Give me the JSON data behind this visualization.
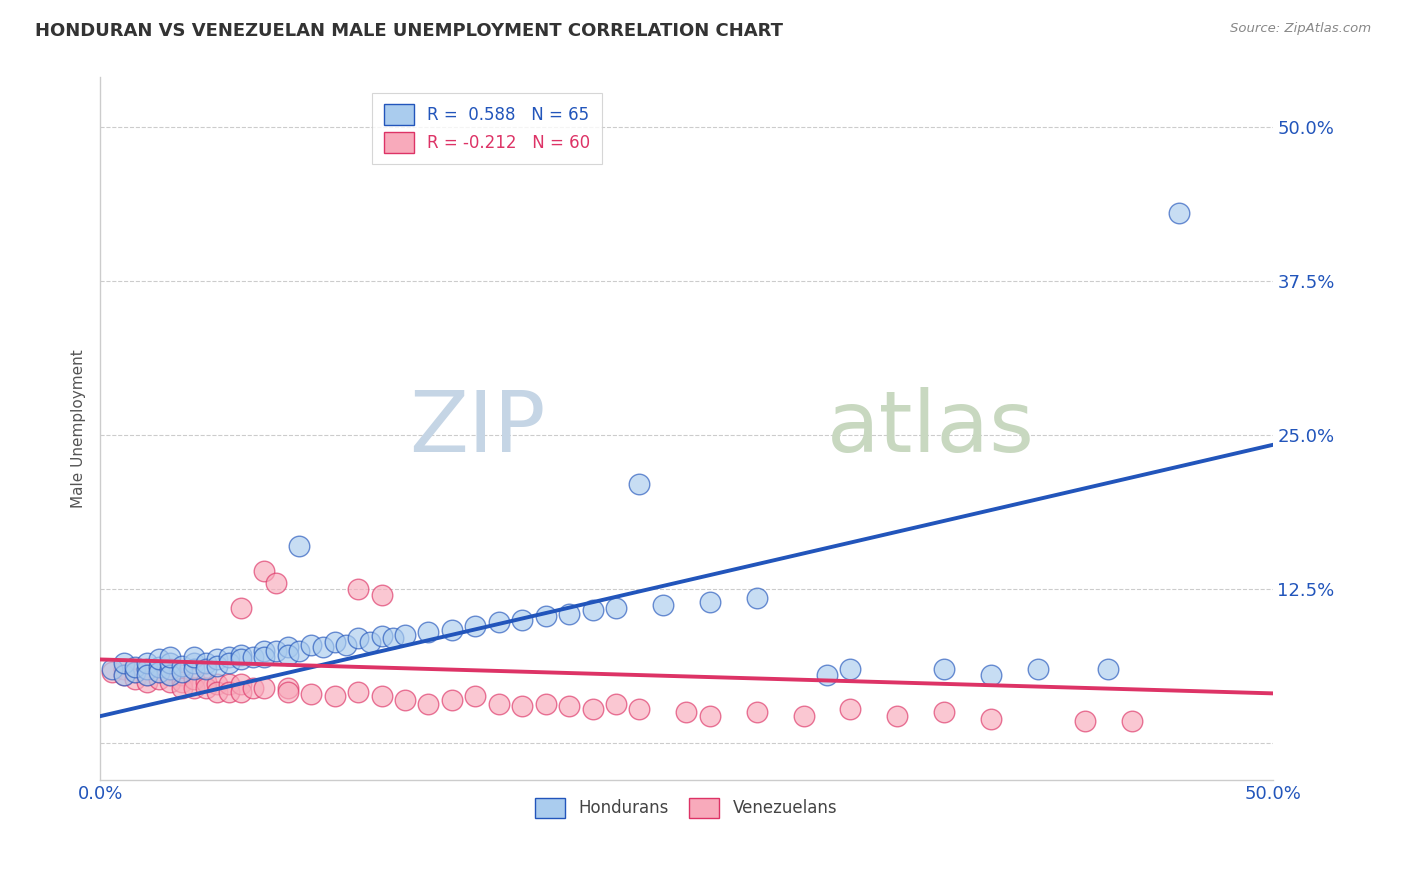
{
  "title": "HONDURAN VS VENEZUELAN MALE UNEMPLOYMENT CORRELATION CHART",
  "source": "Source: ZipAtlas.com",
  "ylabel": "Male Unemployment",
  "xlim": [
    0.0,
    0.5
  ],
  "ylim": [
    -0.03,
    0.54
  ],
  "xticks": [
    0.0,
    0.1,
    0.2,
    0.3,
    0.4,
    0.5
  ],
  "yticks": [
    0.0,
    0.125,
    0.25,
    0.375,
    0.5
  ],
  "ytick_labels": [
    "",
    "12.5%",
    "25.0%",
    "37.5%",
    "50.0%"
  ],
  "xtick_labels": [
    "0.0%",
    "",
    "",
    "",
    "",
    "50.0%"
  ],
  "background_color": "#ffffff",
  "grid_color": "#cccccc",
  "honduran_color": "#aaccee",
  "venezuelan_color": "#f8aabb",
  "honduran_line_color": "#2255bb",
  "venezuelan_line_color": "#dd3366",
  "R_honduran": 0.588,
  "N_honduran": 65,
  "R_venezuelan": -0.212,
  "N_venezuelan": 60,
  "honduran_scatter": [
    [
      0.005,
      0.06
    ],
    [
      0.01,
      0.055
    ],
    [
      0.01,
      0.065
    ],
    [
      0.015,
      0.058
    ],
    [
      0.015,
      0.062
    ],
    [
      0.02,
      0.06
    ],
    [
      0.02,
      0.065
    ],
    [
      0.02,
      0.055
    ],
    [
      0.025,
      0.062
    ],
    [
      0.025,
      0.058
    ],
    [
      0.025,
      0.068
    ],
    [
      0.03,
      0.06
    ],
    [
      0.03,
      0.065
    ],
    [
      0.03,
      0.055
    ],
    [
      0.03,
      0.07
    ],
    [
      0.035,
      0.063
    ],
    [
      0.035,
      0.058
    ],
    [
      0.04,
      0.065
    ],
    [
      0.04,
      0.06
    ],
    [
      0.04,
      0.07
    ],
    [
      0.045,
      0.065
    ],
    [
      0.045,
      0.06
    ],
    [
      0.05,
      0.068
    ],
    [
      0.05,
      0.063
    ],
    [
      0.055,
      0.07
    ],
    [
      0.055,
      0.065
    ],
    [
      0.06,
      0.072
    ],
    [
      0.06,
      0.068
    ],
    [
      0.065,
      0.07
    ],
    [
      0.07,
      0.075
    ],
    [
      0.07,
      0.07
    ],
    [
      0.075,
      0.075
    ],
    [
      0.08,
      0.078
    ],
    [
      0.08,
      0.072
    ],
    [
      0.085,
      0.075
    ],
    [
      0.09,
      0.08
    ],
    [
      0.095,
      0.078
    ],
    [
      0.1,
      0.082
    ],
    [
      0.105,
      0.08
    ],
    [
      0.11,
      0.085
    ],
    [
      0.115,
      0.082
    ],
    [
      0.12,
      0.087
    ],
    [
      0.125,
      0.085
    ],
    [
      0.13,
      0.088
    ],
    [
      0.14,
      0.09
    ],
    [
      0.15,
      0.092
    ],
    [
      0.16,
      0.095
    ],
    [
      0.17,
      0.098
    ],
    [
      0.18,
      0.1
    ],
    [
      0.19,
      0.103
    ],
    [
      0.2,
      0.105
    ],
    [
      0.21,
      0.108
    ],
    [
      0.22,
      0.11
    ],
    [
      0.24,
      0.112
    ],
    [
      0.26,
      0.115
    ],
    [
      0.28,
      0.118
    ],
    [
      0.32,
      0.06
    ],
    [
      0.36,
      0.06
    ],
    [
      0.4,
      0.06
    ],
    [
      0.43,
      0.06
    ],
    [
      0.085,
      0.16
    ],
    [
      0.23,
      0.21
    ],
    [
      0.46,
      0.43
    ],
    [
      0.31,
      0.055
    ],
    [
      0.38,
      0.055
    ]
  ],
  "venezuelan_scatter": [
    [
      0.005,
      0.058
    ],
    [
      0.01,
      0.06
    ],
    [
      0.01,
      0.055
    ],
    [
      0.015,
      0.058
    ],
    [
      0.015,
      0.052
    ],
    [
      0.02,
      0.06
    ],
    [
      0.02,
      0.055
    ],
    [
      0.02,
      0.05
    ],
    [
      0.025,
      0.058
    ],
    [
      0.025,
      0.052
    ],
    [
      0.03,
      0.055
    ],
    [
      0.03,
      0.05
    ],
    [
      0.03,
      0.06
    ],
    [
      0.035,
      0.055
    ],
    [
      0.035,
      0.05
    ],
    [
      0.035,
      0.045
    ],
    [
      0.04,
      0.052
    ],
    [
      0.04,
      0.045
    ],
    [
      0.045,
      0.05
    ],
    [
      0.045,
      0.045
    ],
    [
      0.05,
      0.048
    ],
    [
      0.05,
      0.042
    ],
    [
      0.055,
      0.048
    ],
    [
      0.055,
      0.042
    ],
    [
      0.06,
      0.048
    ],
    [
      0.06,
      0.042
    ],
    [
      0.065,
      0.045
    ],
    [
      0.07,
      0.045
    ],
    [
      0.07,
      0.14
    ],
    [
      0.075,
      0.13
    ],
    [
      0.08,
      0.045
    ],
    [
      0.08,
      0.042
    ],
    [
      0.09,
      0.04
    ],
    [
      0.1,
      0.038
    ],
    [
      0.11,
      0.042
    ],
    [
      0.11,
      0.125
    ],
    [
      0.12,
      0.12
    ],
    [
      0.12,
      0.038
    ],
    [
      0.13,
      0.035
    ],
    [
      0.14,
      0.032
    ],
    [
      0.15,
      0.035
    ],
    [
      0.16,
      0.038
    ],
    [
      0.17,
      0.032
    ],
    [
      0.18,
      0.03
    ],
    [
      0.19,
      0.032
    ],
    [
      0.2,
      0.03
    ],
    [
      0.21,
      0.028
    ],
    [
      0.22,
      0.032
    ],
    [
      0.23,
      0.028
    ],
    [
      0.25,
      0.025
    ],
    [
      0.26,
      0.022
    ],
    [
      0.28,
      0.025
    ],
    [
      0.3,
      0.022
    ],
    [
      0.32,
      0.028
    ],
    [
      0.34,
      0.022
    ],
    [
      0.36,
      0.025
    ],
    [
      0.38,
      0.02
    ],
    [
      0.42,
      0.018
    ],
    [
      0.44,
      0.018
    ],
    [
      0.06,
      0.11
    ]
  ],
  "honduran_slope": 0.44,
  "honduran_intercept": 0.022,
  "venezuelan_slope": -0.055,
  "venezuelan_intercept": 0.068,
  "watermark_zip": "ZIP",
  "watermark_atlas": "atlas",
  "watermark_color_zip": "#c5d5e5",
  "watermark_color_atlas": "#c8d8c0"
}
